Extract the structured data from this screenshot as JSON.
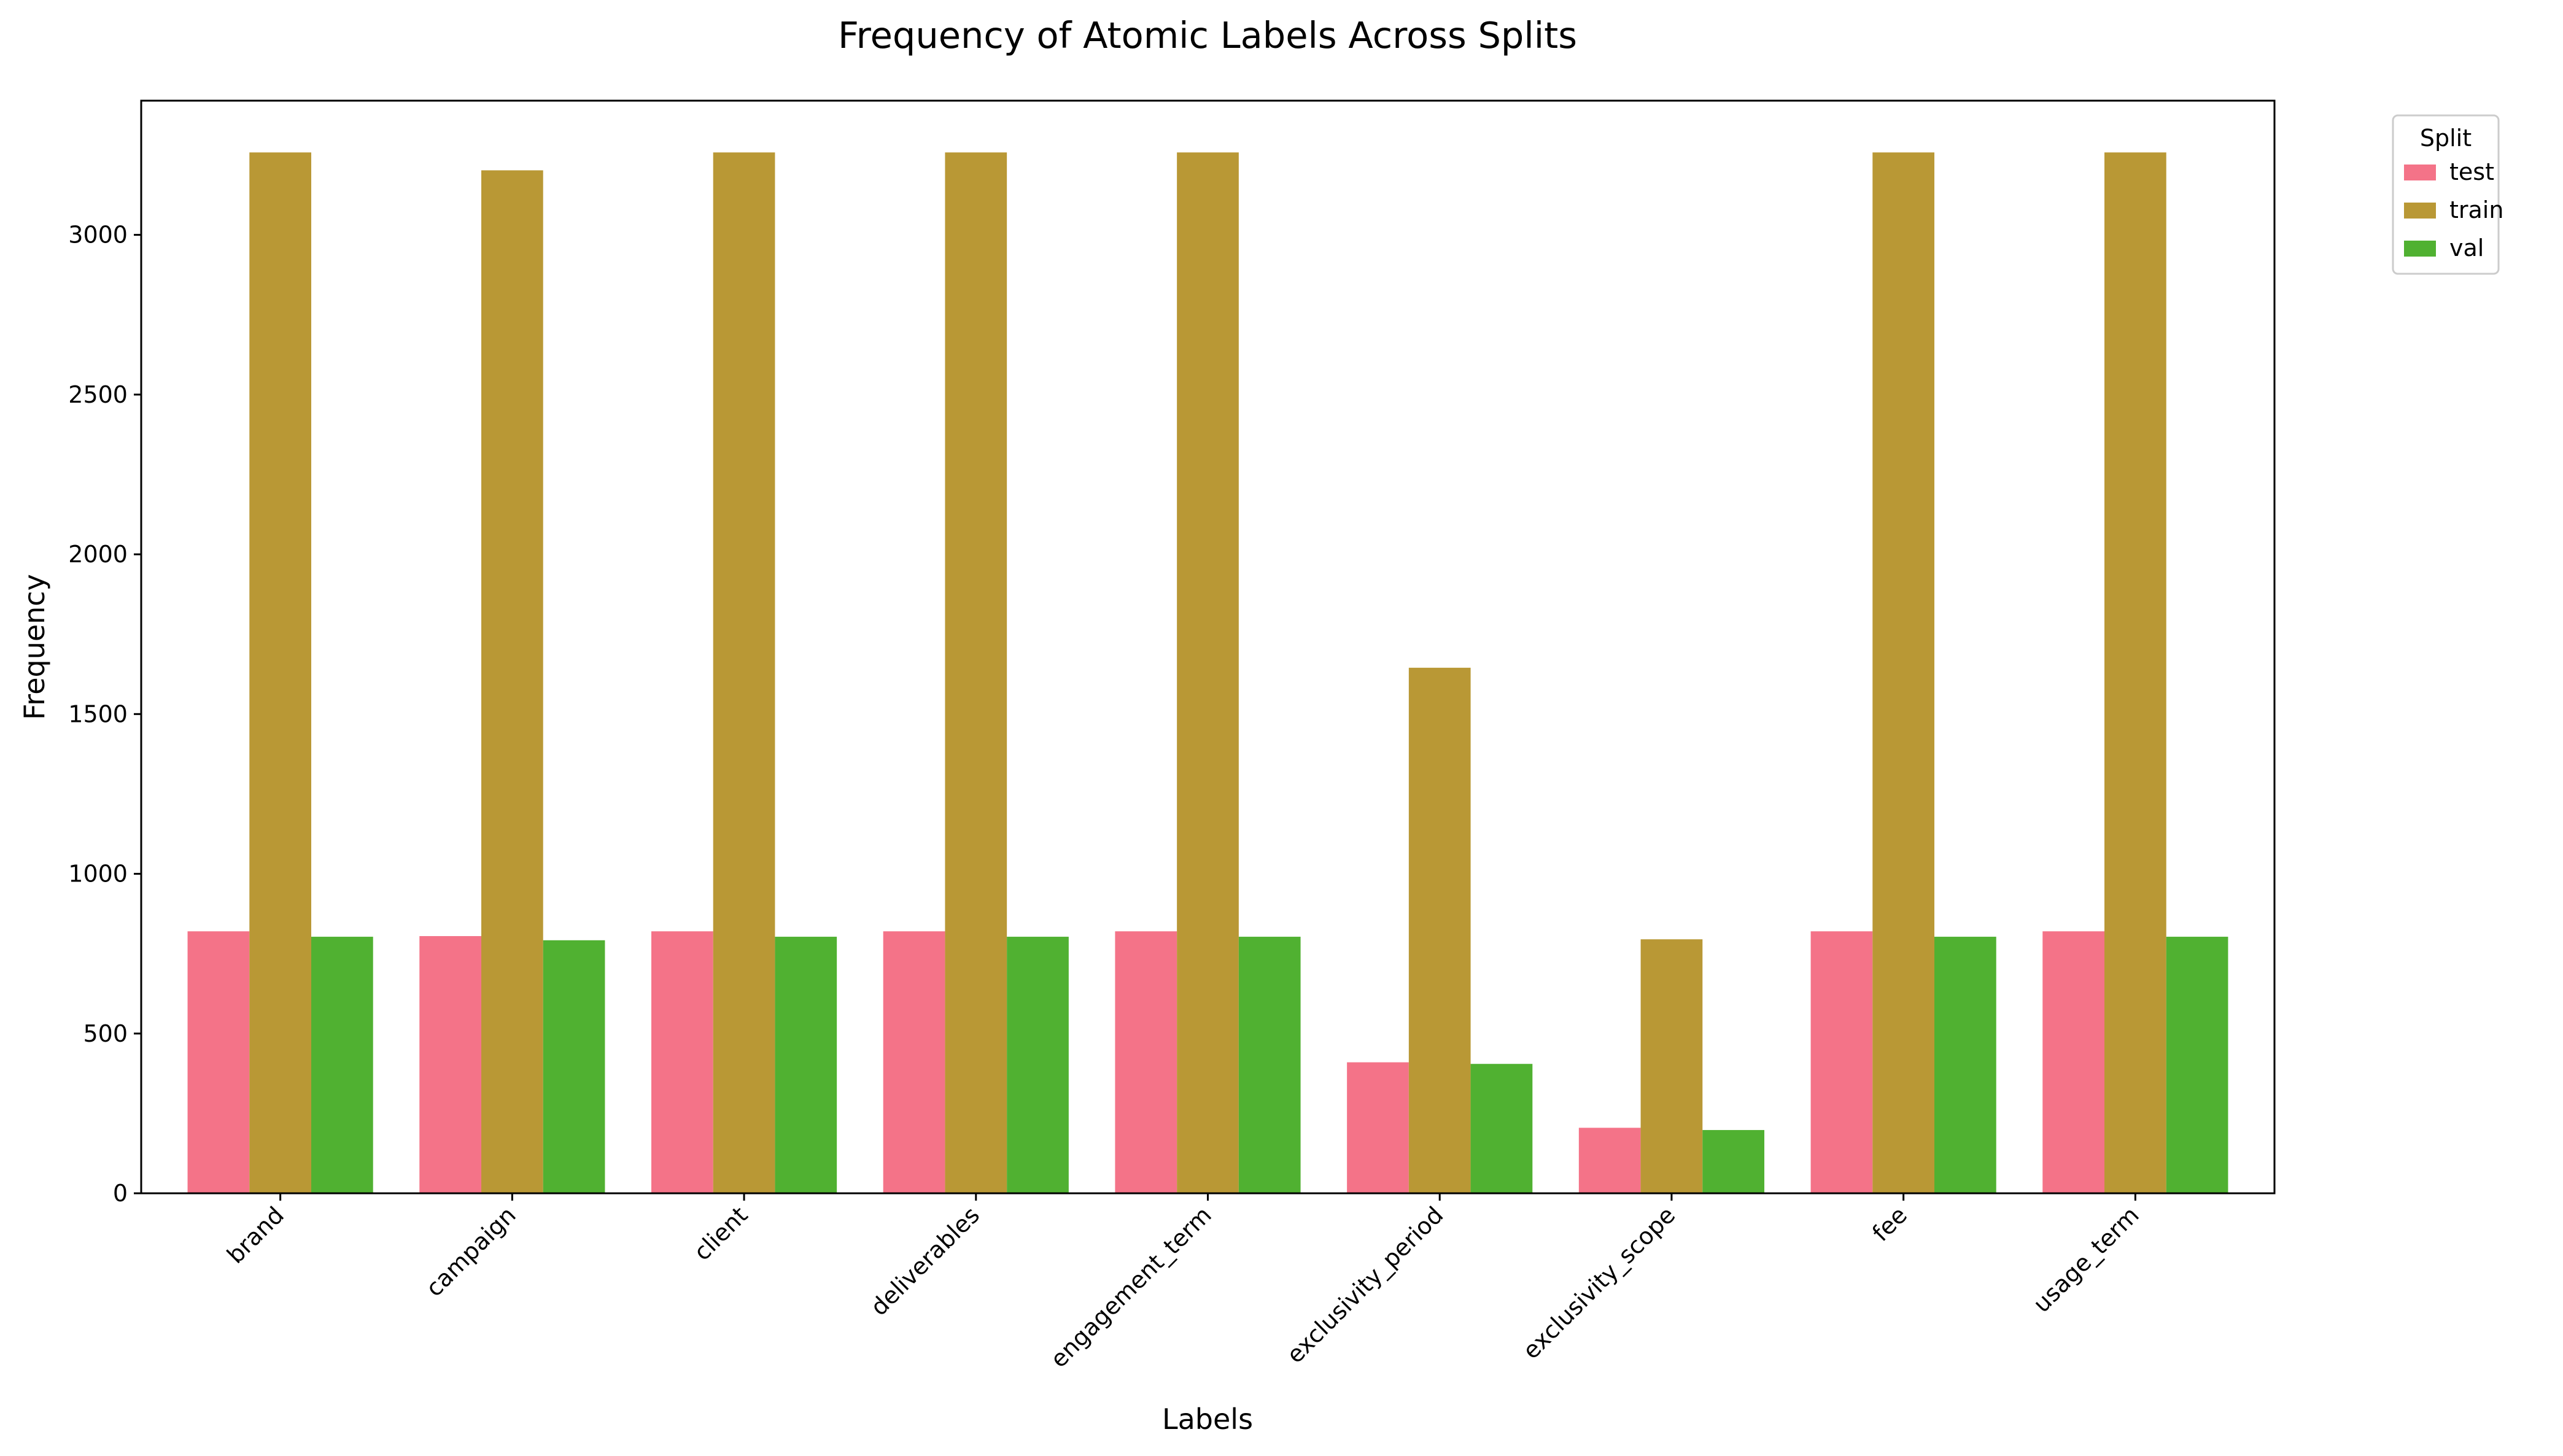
{
  "chart_data": {
    "type": "bar",
    "title": "Frequency of Atomic Labels Across Splits",
    "xlabel": "Labels",
    "ylabel": "Frequency",
    "categories": [
      "brand",
      "campaign",
      "client",
      "deliverables",
      "engagement_term",
      "exclusivity_period",
      "exclusivity_scope",
      "fee",
      "usage_term"
    ],
    "series": [
      {
        "name": "test",
        "color": "#f47388",
        "values": [
          820,
          805,
          820,
          820,
          820,
          410,
          205,
          820,
          820
        ]
      },
      {
        "name": "train",
        "color": "#b99835",
        "values": [
          3258,
          3202,
          3258,
          3258,
          3258,
          1645,
          795,
          3258,
          3258
        ]
      },
      {
        "name": "val",
        "color": "#50b131",
        "values": [
          803,
          792,
          803,
          803,
          803,
          405,
          198,
          803,
          803
        ]
      }
    ],
    "ylim": [
      0,
      3420
    ],
    "yticks": [
      0,
      500,
      1000,
      1500,
      2000,
      2500,
      3000
    ],
    "grid": false,
    "legend": {
      "title": "Split",
      "position": "outside upper right"
    }
  }
}
